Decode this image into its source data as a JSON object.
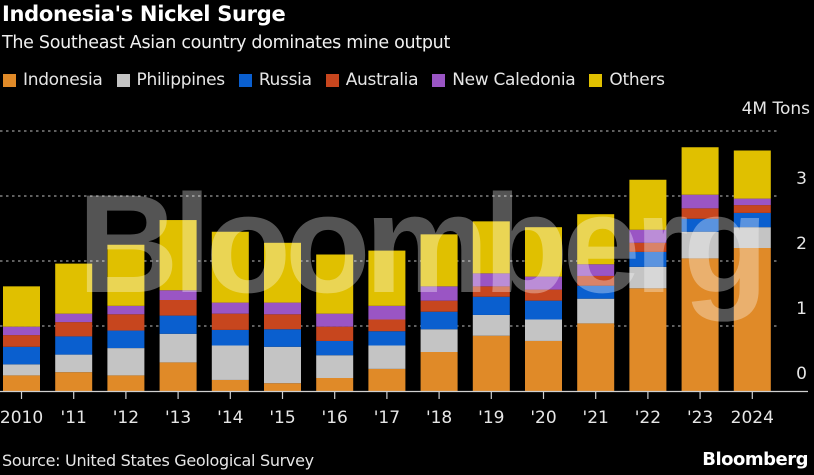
{
  "header": {
    "title": "Indonesia's Nickel Surge",
    "subtitle": "The Southeast Asian country dominates mine output"
  },
  "footer": {
    "source": "Source: United States Geological Survey",
    "brand": "Bloomberg",
    "watermark": "Bloomberg"
  },
  "chart_data": {
    "type": "bar",
    "stacked": true,
    "title": "Indonesia's Nickel Surge",
    "subtitle": "The Southeast Asian country dominates mine output",
    "xlabel": "",
    "ylabel": "",
    "unit_label": "4M Tons",
    "ylim": [
      0,
      4
    ],
    "yticks": [
      0,
      1,
      2,
      3,
      4
    ],
    "ytick_labels": [
      "0",
      "1",
      "2",
      "3",
      "4M Tons"
    ],
    "grid": true,
    "legend_position": "top-left",
    "categories": [
      "2010",
      "'11",
      "'12",
      "'13",
      "'14",
      "'15",
      "'16",
      "'17",
      "'18",
      "'19",
      "'20",
      "'21",
      "'22",
      "'23",
      "2024"
    ],
    "series": [
      {
        "name": "Indonesia",
        "color": "#e08a28",
        "values": [
          0.24,
          0.29,
          0.24,
          0.44,
          0.17,
          0.12,
          0.2,
          0.34,
          0.6,
          0.85,
          0.77,
          1.04,
          1.58,
          2.04,
          2.2
        ]
      },
      {
        "name": "Philippines",
        "color": "#c4c4c4",
        "values": [
          0.17,
          0.27,
          0.42,
          0.44,
          0.53,
          0.56,
          0.35,
          0.36,
          0.35,
          0.32,
          0.33,
          0.38,
          0.33,
          0.41,
          0.32
        ]
      },
      {
        "name": "Russia",
        "color": "#0a5fcf",
        "values": [
          0.27,
          0.28,
          0.27,
          0.28,
          0.24,
          0.27,
          0.22,
          0.22,
          0.27,
          0.28,
          0.29,
          0.2,
          0.23,
          0.2,
          0.22
        ]
      },
      {
        "name": "Australia",
        "color": "#c7461e",
        "values": [
          0.18,
          0.22,
          0.25,
          0.24,
          0.25,
          0.23,
          0.22,
          0.18,
          0.17,
          0.16,
          0.17,
          0.15,
          0.14,
          0.16,
          0.12
        ]
      },
      {
        "name": "New Caledonia",
        "color": "#9a55c4",
        "values": [
          0.13,
          0.13,
          0.13,
          0.15,
          0.17,
          0.18,
          0.2,
          0.21,
          0.22,
          0.2,
          0.2,
          0.18,
          0.2,
          0.21,
          0.1
        ]
      },
      {
        "name": "Others",
        "color": "#e0c000",
        "values": [
          0.62,
          0.77,
          0.94,
          1.08,
          1.09,
          0.92,
          0.91,
          0.85,
          0.8,
          0.8,
          0.76,
          0.77,
          0.77,
          0.73,
          0.74
        ]
      }
    ]
  }
}
